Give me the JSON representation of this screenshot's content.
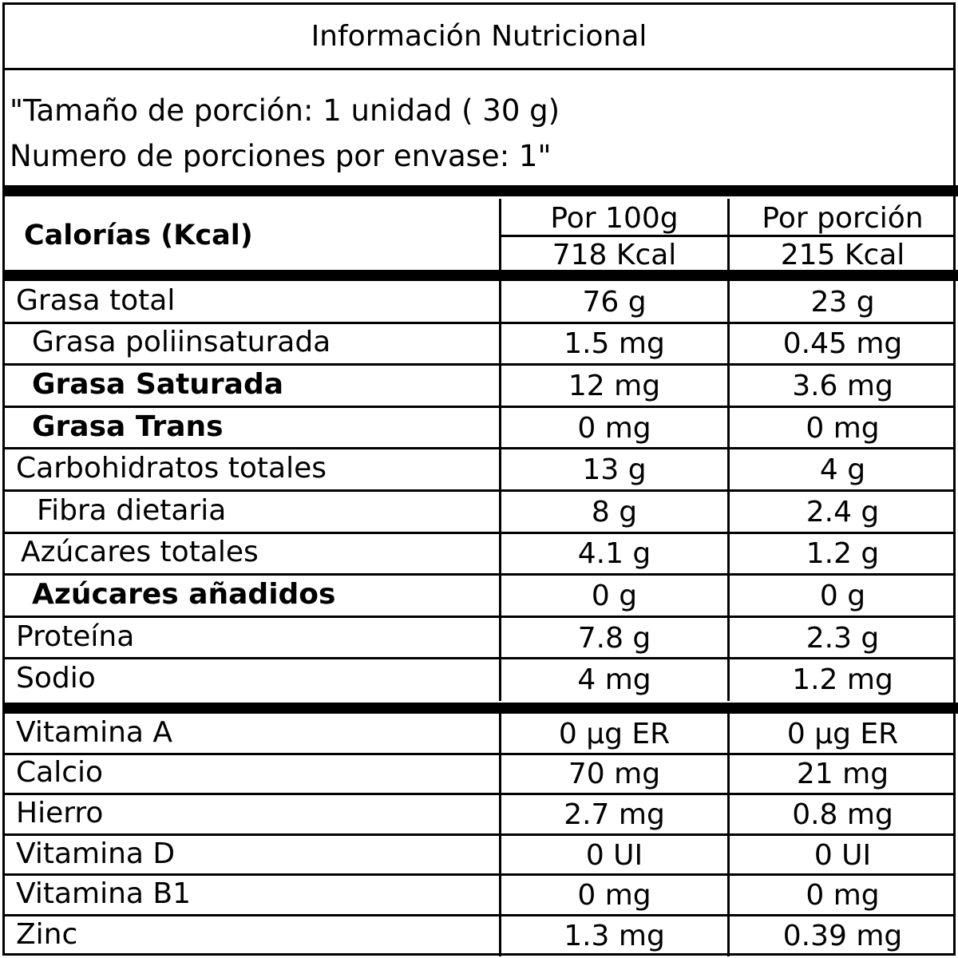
{
  "title": "Información Nutricional",
  "serving": {
    "line1": "\"Tamaño de porción: 1 unidad ( 30 g)",
    "line2": "Numero de porciones por envase: 1\""
  },
  "calories": {
    "label": "Calorías (Kcal)",
    "col1_header": "Por 100g",
    "col2_header": "Por porción",
    "col1_value": "718 Kcal",
    "col2_value": "215 Kcal"
  },
  "nutrients": [
    {
      "name": "Grasa total",
      "per100": "76 g",
      "perPortion": "23 g",
      "bold": false,
      "indent": 0
    },
    {
      "name": "Grasa poliinsaturada",
      "per100": "1.5 mg",
      "perPortion": "0.45 mg",
      "bold": false,
      "indent": 1
    },
    {
      "name": "Grasa Saturada",
      "per100": "12 mg",
      "perPortion": "3.6 mg",
      "bold": true,
      "indent": 1
    },
    {
      "name": "Grasa Trans",
      "per100": "0 mg",
      "perPortion": "0 mg",
      "bold": true,
      "indent": 1
    },
    {
      "name": "Carbohidratos totales",
      "per100": "13 g",
      "perPortion": "4 g",
      "bold": false,
      "indent": 0
    },
    {
      "name": "Fibra dietaria",
      "per100": "8 g",
      "perPortion": "2.4 g",
      "bold": false,
      "indent": 2
    },
    {
      "name": "Azúcares totales",
      "per100": "4.1 g",
      "perPortion": "1.2 g",
      "bold": false,
      "indent": 3
    },
    {
      "name": "Azúcares añadidos",
      "per100": "0 g",
      "perPortion": "0 g",
      "bold": true,
      "indent": 1
    },
    {
      "name": "Proteína",
      "per100": "7.8 g",
      "perPortion": "2.3 g",
      "bold": false,
      "indent": 0
    },
    {
      "name": "Sodio",
      "per100": "4 mg",
      "perPortion": "1.2 mg",
      "bold": false,
      "indent": 0
    }
  ],
  "vitamins": [
    {
      "name": "Vitamina A",
      "per100": "0 µg ER",
      "perPortion": "0 µg ER"
    },
    {
      "name": "Calcio",
      "per100": "70 mg",
      "perPortion": "21 mg"
    },
    {
      "name": "Hierro",
      "per100": "2.7 mg",
      "perPortion": "0.8 mg"
    },
    {
      "name": "Vitamina D",
      "per100": "0 UI",
      "perPortion": "0 UI"
    },
    {
      "name": "Vitamina B1",
      "per100": "0 mg",
      "perPortion": "0 mg"
    },
    {
      "name": "Zinc",
      "per100": "1.3 mg",
      "perPortion": "0.39 mg"
    }
  ]
}
